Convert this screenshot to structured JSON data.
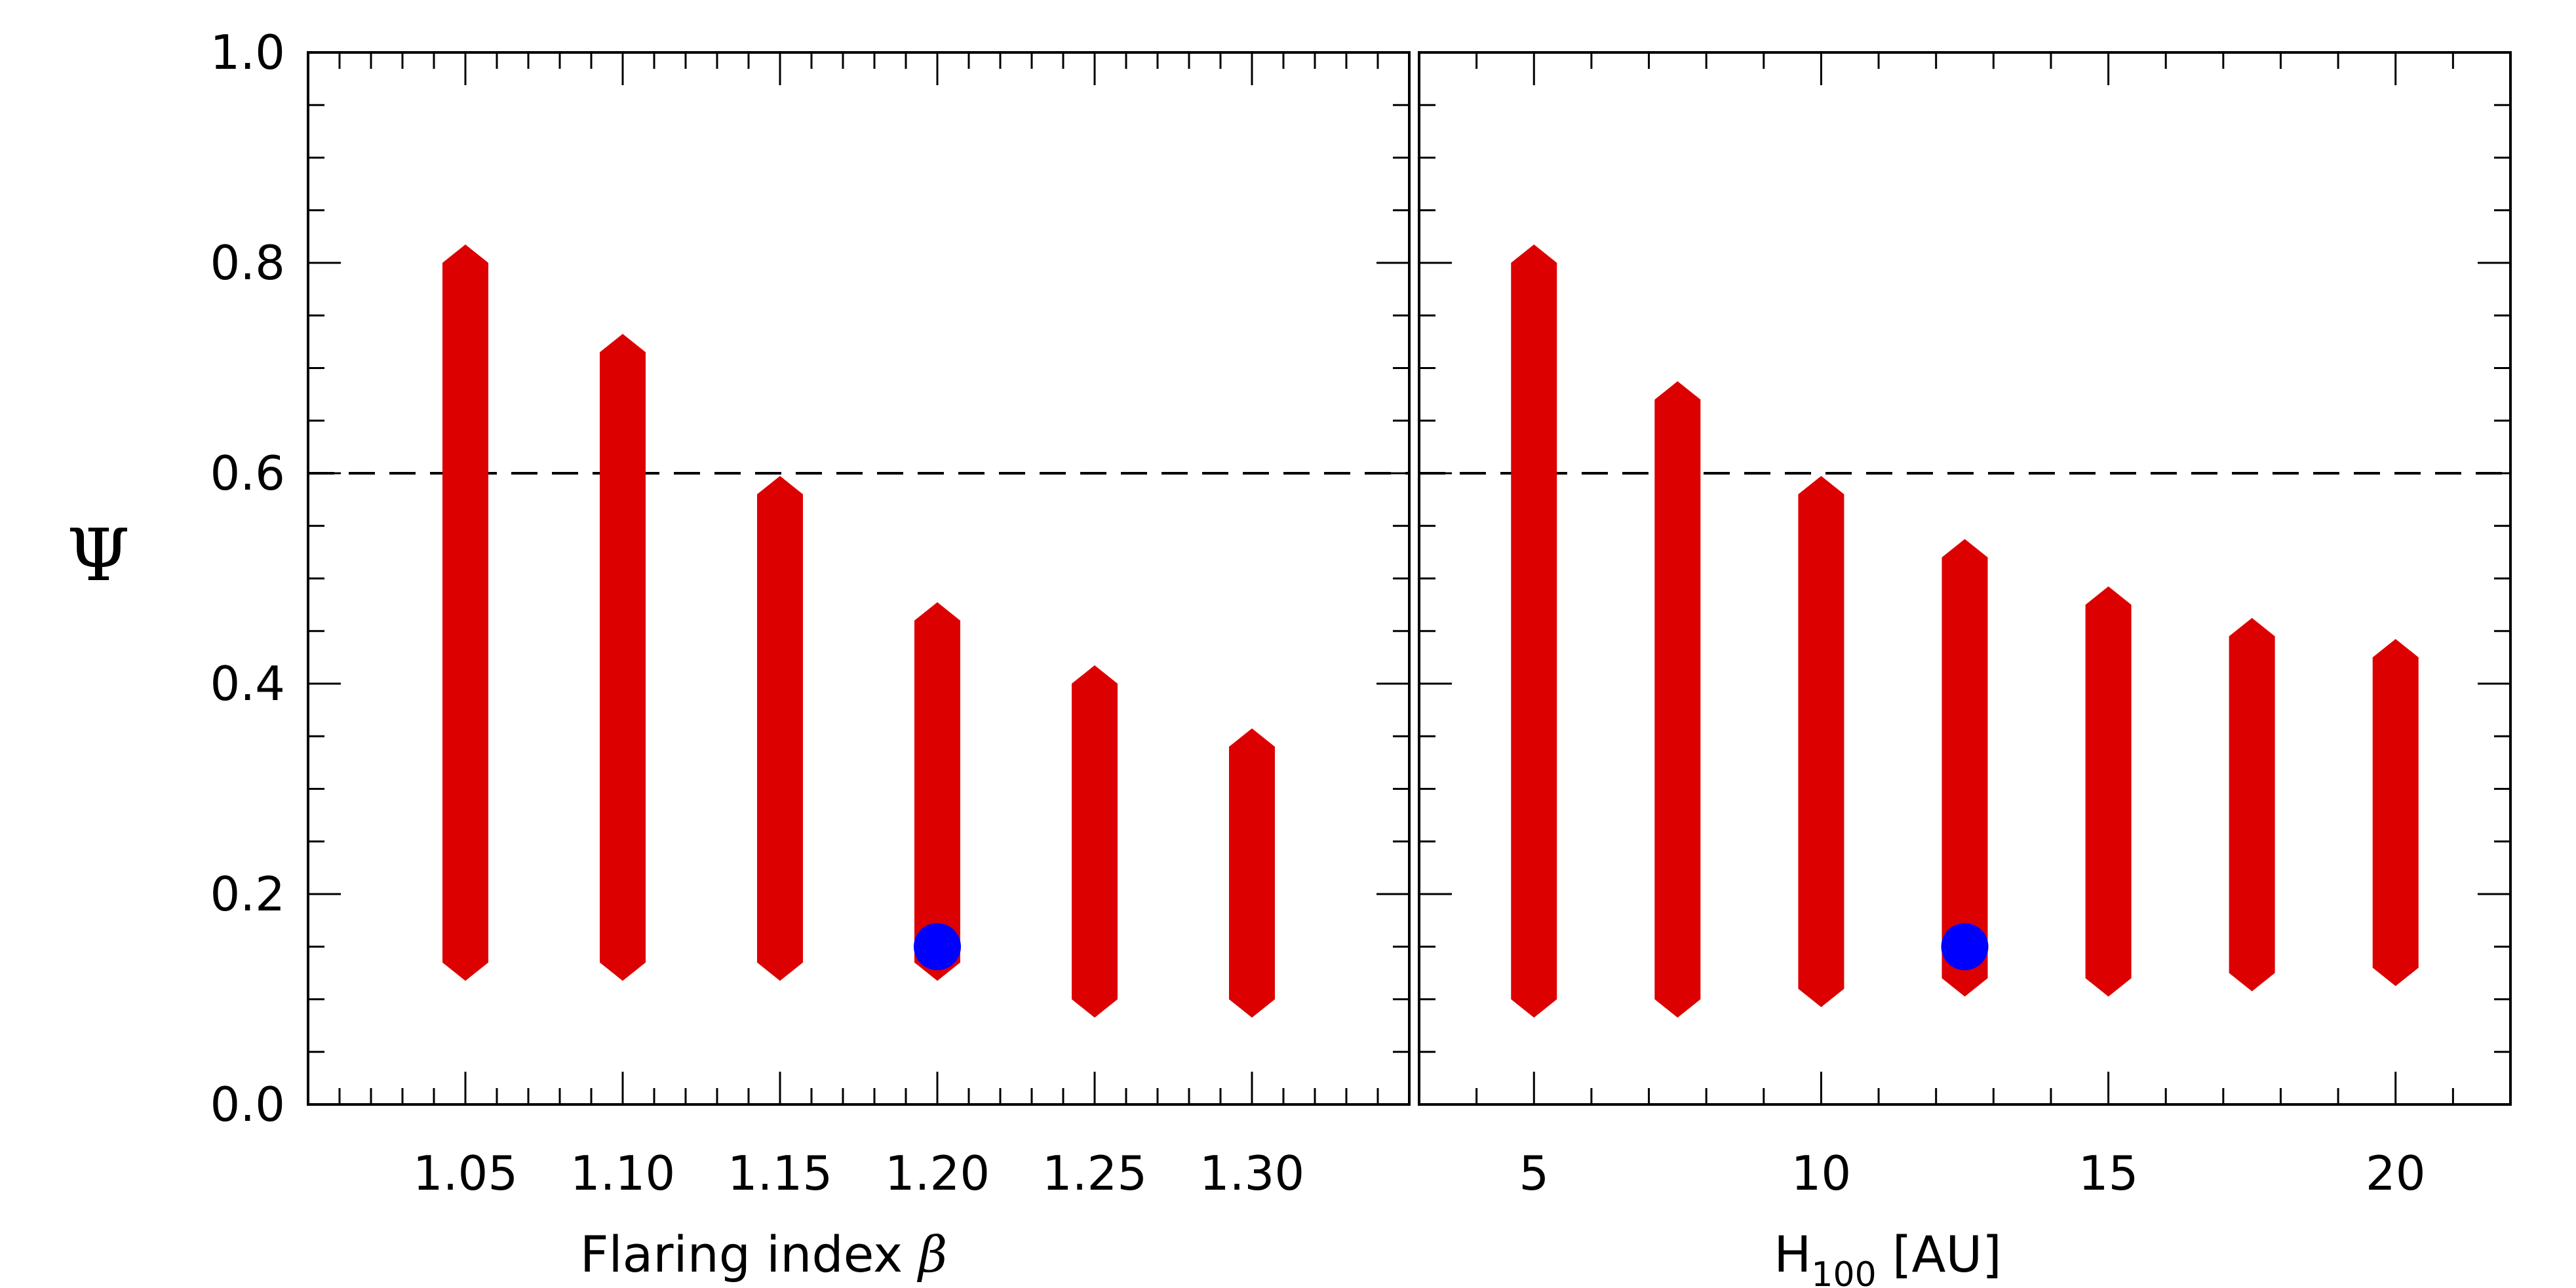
{
  "chart_data": [
    {
      "type": "range",
      "panel": "left",
      "xlabel": "Flaring index β",
      "xlabel_text": "Flaring index ",
      "xlabel_symbol": "β",
      "ylabel": "Ψ",
      "xlim": [
        1.0,
        1.35
      ],
      "ylim": [
        0.0,
        1.0
      ],
      "xticks": [
        1.05,
        1.1,
        1.15,
        1.2,
        1.25,
        1.3
      ],
      "xtick_labels": [
        "1.05",
        "1.10",
        "1.15",
        "1.20",
        "1.25",
        "1.30"
      ],
      "yticks": [
        0.0,
        0.2,
        0.4,
        0.6,
        0.8,
        1.0
      ],
      "ytick_labels": [
        "0.0",
        "0.2",
        "0.4",
        "0.6",
        "0.8",
        "1.0"
      ],
      "threshold": 0.6,
      "ranges": [
        {
          "x": 1.05,
          "low": 0.135,
          "high": 0.8
        },
        {
          "x": 1.1,
          "low": 0.135,
          "high": 0.715
        },
        {
          "x": 1.15,
          "low": 0.135,
          "high": 0.58
        },
        {
          "x": 1.2,
          "low": 0.135,
          "high": 0.46
        },
        {
          "x": 1.25,
          "low": 0.1,
          "high": 0.4
        },
        {
          "x": 1.3,
          "low": 0.1,
          "high": 0.34
        }
      ],
      "marker": {
        "x": 1.2,
        "y": 0.15
      },
      "range_color": "#dd0000",
      "marker_color": "#0000ff"
    },
    {
      "type": "range",
      "panel": "right",
      "xlabel": "H100 [AU]",
      "xlabel_main": "H",
      "xlabel_sub": "100",
      "xlabel_unit": " [AU]",
      "xlim": [
        3.0,
        22.0
      ],
      "ylim": [
        0.0,
        1.0
      ],
      "xticks": [
        5,
        10,
        15,
        20
      ],
      "xtick_labels": [
        "5",
        "10",
        "15",
        "20"
      ],
      "yticks": [
        0.0,
        0.2,
        0.4,
        0.6,
        0.8,
        1.0
      ],
      "threshold": 0.6,
      "ranges": [
        {
          "x": 5.0,
          "low": 0.1,
          "high": 0.8
        },
        {
          "x": 7.5,
          "low": 0.1,
          "high": 0.67
        },
        {
          "x": 10.0,
          "low": 0.11,
          "high": 0.58
        },
        {
          "x": 12.5,
          "low": 0.12,
          "high": 0.52
        },
        {
          "x": 15.0,
          "low": 0.12,
          "high": 0.475
        },
        {
          "x": 17.5,
          "low": 0.125,
          "high": 0.445
        },
        {
          "x": 20.0,
          "low": 0.13,
          "high": 0.425
        }
      ],
      "marker": {
        "x": 12.5,
        "y": 0.15
      },
      "range_color": "#dd0000",
      "marker_color": "#0000ff"
    }
  ]
}
